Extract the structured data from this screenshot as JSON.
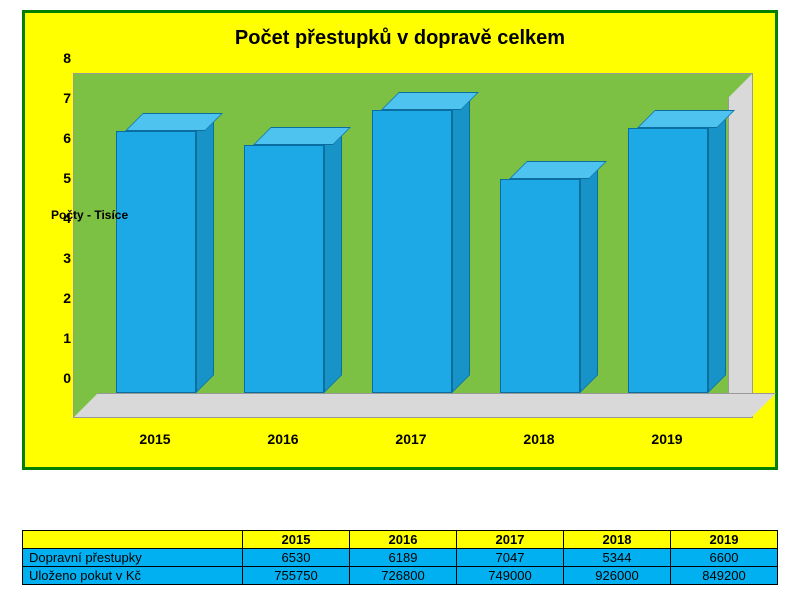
{
  "chart": {
    "title": "Počet přestupků v dopravě celkem",
    "type": "bar",
    "categories": [
      "2015",
      "2016",
      "2017",
      "2018",
      "2019"
    ],
    "values": [
      6.53,
      6.189,
      7.047,
      5.344,
      6.6
    ],
    "bar_color": "#1ca9e6",
    "bar_top_color": "#4fc3f0",
    "bar_side_color": "#1793c8",
    "bar_border": "#0a6fa0",
    "plot_bg": "#7cc144",
    "floor_color": "#d9d9d9",
    "outer_bg": "#ffff00",
    "border_color": "#008000",
    "ylim": [
      0,
      8
    ],
    "ytick_step": 1,
    "yticks": [
      "0",
      "1",
      "2",
      "3",
      "4",
      "5",
      "6",
      "7",
      "8"
    ],
    "ylabel": "Počty - Tisíce",
    "title_fontsize": 20,
    "tick_fontsize": 14
  },
  "table": {
    "header_blank": "",
    "columns": [
      "2015",
      "2016",
      "2017",
      "2018",
      "2019"
    ],
    "rows": [
      {
        "label": "Dopravní přestupky",
        "cells": [
          "6530",
          "6189",
          "7047",
          "5344",
          "6600"
        ]
      },
      {
        "label": "Uloženo pokut v Kč",
        "cells": [
          "755750",
          "726800",
          "749000",
          "926000",
          "849200"
        ]
      }
    ],
    "header_bg": "#ffff00",
    "cell_bg": "#00b0f0",
    "border": "#000000"
  }
}
